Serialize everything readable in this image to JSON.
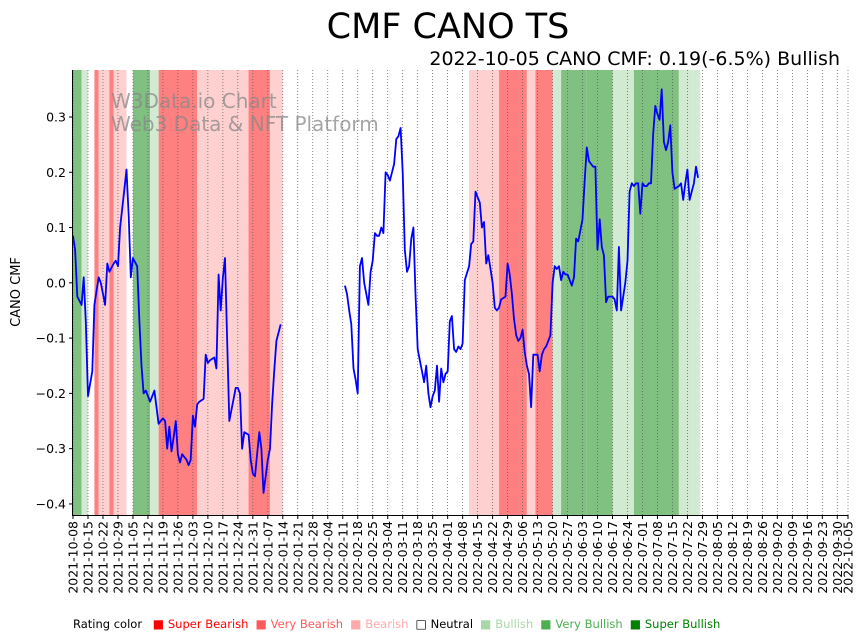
{
  "chart_data": {
    "type": "line",
    "title": "CMF CANO TS",
    "subtitle": "2022-10-05 CANO CMF: 0.19(-6.5%) Bullish",
    "xlabel": "",
    "ylabel": "CANO CMF",
    "ylim": [
      -0.42,
      0.385
    ],
    "xlim": [
      "2021-10-08",
      "2022-10-05"
    ],
    "y_ticks": [
      -0.4,
      -0.3,
      -0.2,
      -0.1,
      0.0,
      0.1,
      0.2,
      0.3
    ],
    "y_tick_labels": [
      "−0.4",
      "−0.3",
      "−0.2",
      "−0.1",
      "0.0",
      "0.1",
      "0.2",
      "0.3"
    ],
    "x_tick_labels": [
      "2021-10-08",
      "2021-10-15",
      "2021-10-22",
      "2021-10-29",
      "2021-11-05",
      "2021-11-12",
      "2021-11-19",
      "2021-11-26",
      "2021-12-03",
      "2021-12-10",
      "2021-12-17",
      "2021-12-24",
      "2021-12-31",
      "2022-01-07",
      "2022-01-14",
      "2022-01-21",
      "2022-01-28",
      "2022-02-04",
      "2022-02-11",
      "2022-02-18",
      "2022-02-25",
      "2022-03-04",
      "2022-03-11",
      "2022-03-18",
      "2022-03-25",
      "2022-04-01",
      "2022-04-08",
      "2022-04-15",
      "2022-04-22",
      "2022-04-29",
      "2022-05-06",
      "2022-05-13",
      "2022-05-20",
      "2022-05-27",
      "2022-06-03",
      "2022-06-10",
      "2022-06-17",
      "2022-06-24",
      "2022-07-01",
      "2022-07-08",
      "2022-07-15",
      "2022-07-22",
      "2022-07-29",
      "2022-08-05",
      "2022-08-12",
      "2022-08-19",
      "2022-08-26",
      "2022-09-02",
      "2022-09-09",
      "2022-09-16",
      "2022-09-23",
      "2022-09-30",
      "2022-10-05"
    ],
    "watermark": [
      "W3Data.io Chart",
      "Web3 Data & NFT Platform"
    ],
    "grid": "vertical dotted",
    "series": [
      {
        "name": "CANO CMF",
        "color": "#0000ff",
        "points": [
          [
            0,
            0.085
          ],
          [
            1,
            0.06
          ],
          [
            2,
            -0.025
          ],
          [
            4,
            -0.04
          ],
          [
            5,
            0.01
          ],
          [
            6,
            -0.07
          ],
          [
            7,
            -0.205
          ],
          [
            9,
            -0.16
          ],
          [
            10,
            -0.04
          ],
          [
            11,
            -0.015
          ],
          [
            12,
            0.01
          ],
          [
            13,
            0.0
          ],
          [
            15,
            -0.04
          ],
          [
            16,
            0.035
          ],
          [
            17,
            0.02
          ],
          [
            19,
            0.035
          ],
          [
            20,
            0.04
          ],
          [
            21,
            0.03
          ],
          [
            22,
            0.1
          ],
          [
            24,
            0.17
          ],
          [
            25,
            0.205
          ],
          [
            26,
            0.12
          ],
          [
            27,
            0.01
          ],
          [
            28,
            0.045
          ],
          [
            30,
            0.03
          ],
          [
            31,
            -0.07
          ],
          [
            32,
            -0.15
          ],
          [
            33,
            -0.2
          ],
          [
            34,
            -0.195
          ],
          [
            36,
            -0.215
          ],
          [
            38,
            -0.195
          ],
          [
            40,
            -0.255
          ],
          [
            42,
            -0.245
          ],
          [
            43,
            -0.25
          ],
          [
            44,
            -0.3
          ],
          [
            45,
            -0.26
          ],
          [
            46,
            -0.305
          ],
          [
            47,
            -0.28
          ],
          [
            48,
            -0.25
          ],
          [
            49,
            -0.31
          ],
          [
            50,
            -0.325
          ],
          [
            51,
            -0.31
          ],
          [
            52,
            -0.315
          ],
          [
            53,
            -0.32
          ],
          [
            54,
            -0.33
          ],
          [
            55,
            -0.32
          ],
          [
            56,
            -0.24
          ],
          [
            57,
            -0.26
          ],
          [
            58,
            -0.22
          ],
          [
            59,
            -0.215
          ],
          [
            61,
            -0.21
          ],
          [
            62,
            -0.13
          ],
          [
            63,
            -0.145
          ],
          [
            64,
            -0.14
          ],
          [
            66,
            -0.135
          ],
          [
            67,
            -0.155
          ],
          [
            68,
            0.015
          ],
          [
            69,
            -0.05
          ],
          [
            70,
            0.01
          ],
          [
            71,
            0.045
          ],
          [
            72,
            -0.1
          ],
          [
            73,
            -0.25
          ],
          [
            75,
            -0.21
          ],
          [
            76,
            -0.19
          ],
          [
            77,
            -0.19
          ],
          [
            78,
            -0.2
          ],
          [
            79,
            -0.3
          ],
          [
            80,
            -0.27
          ],
          [
            82,
            -0.275
          ],
          [
            83,
            -0.32
          ],
          [
            84,
            -0.345
          ],
          [
            85,
            -0.35
          ],
          [
            86,
            -0.31
          ],
          [
            87,
            -0.27
          ],
          [
            88,
            -0.3
          ],
          [
            89,
            -0.38
          ],
          [
            90,
            -0.35
          ],
          [
            91,
            -0.32
          ],
          [
            92,
            -0.3
          ],
          [
            93,
            -0.22
          ],
          [
            94,
            -0.16
          ],
          [
            95,
            -0.105
          ],
          [
            97,
            -0.075
          ],
          null,
          [
            127,
            -0.005
          ],
          [
            128,
            -0.02
          ],
          [
            129,
            -0.05
          ],
          [
            130,
            -0.075
          ],
          [
            131,
            -0.155
          ],
          [
            132,
            -0.175
          ],
          [
            133,
            -0.2
          ],
          [
            134,
            0.03
          ],
          [
            135,
            0.045
          ],
          [
            136,
            0.0
          ],
          [
            138,
            -0.04
          ],
          [
            139,
            0.02
          ],
          [
            140,
            0.04
          ],
          [
            141,
            0.09
          ],
          [
            142,
            0.085
          ],
          [
            143,
            0.085
          ],
          [
            144,
            0.1
          ],
          [
            145,
            0.09
          ],
          [
            146,
            0.2
          ],
          [
            147,
            0.195
          ],
          [
            148,
            0.185
          ],
          [
            149,
            0.2
          ],
          [
            150,
            0.215
          ],
          [
            151,
            0.26
          ],
          [
            152,
            0.265
          ],
          [
            153,
            0.28
          ],
          [
            154,
            0.2
          ],
          [
            155,
            0.06
          ],
          [
            156,
            0.02
          ],
          [
            157,
            0.03
          ],
          [
            158,
            0.08
          ],
          [
            159,
            0.1
          ],
          [
            160,
            -0.02
          ],
          [
            161,
            -0.12
          ],
          [
            162,
            -0.14
          ],
          [
            163,
            -0.16
          ],
          [
            164,
            -0.18
          ],
          [
            165,
            -0.15
          ],
          [
            166,
            -0.2
          ],
          [
            167,
            -0.225
          ],
          [
            168,
            -0.205
          ],
          [
            169,
            -0.195
          ],
          [
            170,
            -0.15
          ],
          [
            171,
            -0.215
          ],
          [
            172,
            -0.155
          ],
          [
            173,
            -0.18
          ],
          [
            174,
            -0.165
          ],
          [
            175,
            -0.16
          ],
          [
            176,
            -0.07
          ],
          [
            177,
            -0.06
          ],
          [
            178,
            -0.12
          ],
          [
            179,
            -0.125
          ],
          [
            180,
            -0.115
          ],
          [
            181,
            -0.12
          ],
          [
            182,
            -0.11
          ],
          [
            183,
            0.005
          ],
          [
            185,
            0.03
          ],
          [
            186,
            0.07
          ],
          [
            187,
            0.075
          ],
          [
            188,
            0.165
          ],
          [
            189,
            0.155
          ],
          [
            190,
            0.145
          ],
          [
            191,
            0.1
          ],
          [
            192,
            0.11
          ],
          [
            193,
            0.035
          ],
          [
            194,
            0.05
          ],
          [
            195,
            0.025
          ],
          [
            196,
            0.0
          ],
          [
            197,
            -0.045
          ],
          [
            198,
            -0.05
          ],
          [
            199,
            -0.045
          ],
          [
            200,
            -0.03
          ],
          [
            202,
            -0.025
          ],
          [
            203,
            0.035
          ],
          [
            204,
            0.015
          ],
          [
            205,
            -0.02
          ],
          [
            206,
            -0.065
          ],
          [
            207,
            -0.095
          ],
          [
            208,
            -0.105
          ],
          [
            209,
            -0.1
          ],
          [
            210,
            -0.085
          ],
          [
            211,
            -0.125
          ],
          [
            212,
            -0.15
          ],
          [
            213,
            -0.165
          ],
          [
            214,
            -0.225
          ],
          [
            215,
            -0.13
          ],
          [
            217,
            -0.13
          ],
          [
            218,
            -0.16
          ],
          [
            219,
            -0.13
          ],
          [
            220,
            -0.12
          ],
          [
            221,
            -0.115
          ],
          [
            222,
            -0.105
          ],
          [
            223,
            -0.095
          ],
          [
            224,
            0.0
          ],
          [
            225,
            0.03
          ],
          [
            226,
            0.025
          ],
          [
            227,
            0.03
          ],
          [
            228,
            0.005
          ],
          [
            229,
            0.02
          ],
          [
            230,
            0.015
          ],
          [
            231,
            0.015
          ],
          [
            232,
            0.005
          ],
          [
            233,
            -0.005
          ],
          [
            234,
            0.01
          ],
          [
            235,
            0.08
          ],
          [
            236,
            0.075
          ],
          [
            237,
            0.095
          ],
          [
            238,
            0.115
          ],
          [
            239,
            0.185
          ],
          [
            240,
            0.245
          ],
          [
            241,
            0.22
          ],
          [
            242,
            0.215
          ],
          [
            243,
            0.21
          ],
          [
            244,
            0.21
          ],
          [
            245,
            0.06
          ],
          [
            246,
            0.115
          ],
          [
            247,
            0.065
          ],
          [
            248,
            0.05
          ],
          [
            249,
            -0.035
          ],
          [
            250,
            -0.025
          ],
          [
            251,
            -0.025
          ],
          [
            252,
            -0.025
          ],
          [
            253,
            -0.03
          ],
          [
            254,
            -0.05
          ],
          [
            255,
            0.065
          ],
          [
            256,
            -0.05
          ],
          [
            257,
            -0.025
          ],
          [
            258,
            0.0
          ],
          [
            259,
            0.04
          ],
          [
            260,
            0.165
          ],
          [
            261,
            0.18
          ],
          [
            262,
            0.175
          ],
          [
            263,
            0.18
          ],
          [
            264,
            0.18
          ],
          [
            265,
            0.125
          ],
          [
            266,
            0.18
          ],
          [
            267,
            0.175
          ],
          [
            268,
            0.175
          ],
          [
            269,
            0.18
          ],
          [
            270,
            0.18
          ],
          [
            271,
            0.27
          ],
          [
            272,
            0.32
          ],
          [
            273,
            0.305
          ],
          [
            274,
            0.295
          ],
          [
            275,
            0.35
          ],
          [
            276,
            0.255
          ],
          [
            277,
            0.24
          ],
          [
            278,
            0.255
          ],
          [
            279,
            0.285
          ],
          [
            280,
            0.2
          ],
          [
            281,
            0.17
          ],
          [
            283,
            0.175
          ],
          [
            284,
            0.18
          ],
          [
            285,
            0.15
          ],
          [
            286,
            0.18
          ],
          [
            287,
            0.205
          ],
          [
            288,
            0.15
          ],
          [
            289,
            0.165
          ],
          [
            290,
            0.18
          ],
          [
            291,
            0.21
          ],
          [
            292,
            0.19
          ]
        ]
      }
    ],
    "rating_bands_daydiff_from_start": [
      {
        "from": 0,
        "to": 4,
        "rating": "Very Bullish"
      },
      {
        "from": 4,
        "to": 7,
        "rating": "Bullish"
      },
      {
        "from": 7,
        "to": 10,
        "rating": "Neutral"
      },
      {
        "from": 10,
        "to": 12,
        "rating": "Very Bearish"
      },
      {
        "from": 12,
        "to": 17,
        "rating": "Bearish"
      },
      {
        "from": 17,
        "to": 19,
        "rating": "Very Bearish"
      },
      {
        "from": 19,
        "to": 25,
        "rating": "Bearish"
      },
      {
        "from": 25,
        "to": 28,
        "rating": "Neutral"
      },
      {
        "from": 28,
        "to": 36,
        "rating": "Very Bullish"
      },
      {
        "from": 36,
        "to": 40,
        "rating": "Bullish"
      },
      {
        "from": 40,
        "to": 58,
        "rating": "Very Bearish"
      },
      {
        "from": 58,
        "to": 82,
        "rating": "Bearish"
      },
      {
        "from": 82,
        "to": 92,
        "rating": "Very Bearish"
      },
      {
        "from": 92,
        "to": 98,
        "rating": "Bearish"
      },
      {
        "from": 98,
        "to": 100,
        "rating": "Neutral"
      },
      {
        "from": 185,
        "to": 199,
        "rating": "Bearish"
      },
      {
        "from": 199,
        "to": 212,
        "rating": "Very Bearish"
      },
      {
        "from": 212,
        "to": 216,
        "rating": "Bearish"
      },
      {
        "from": 216,
        "to": 224,
        "rating": "Very Bearish"
      },
      {
        "from": 224,
        "to": 228,
        "rating": "Bullish"
      },
      {
        "from": 228,
        "to": 240,
        "rating": "Very Bullish"
      },
      {
        "from": 240,
        "to": 252,
        "rating": "Very Bullish"
      },
      {
        "from": 252,
        "to": 262,
        "rating": "Bullish"
      },
      {
        "from": 262,
        "to": 270,
        "rating": "Very Bullish"
      },
      {
        "from": 270,
        "to": 283,
        "rating": "Very Bullish"
      },
      {
        "from": 283,
        "to": 290,
        "rating": "Bullish"
      },
      {
        "from": 290,
        "to": 293,
        "rating": "Bullish"
      }
    ],
    "legend": {
      "title": "Rating color",
      "items": [
        {
          "label": "Super Bearish",
          "color": "#ff0000"
        },
        {
          "label": "Very Bearish",
          "color": "#ff5a5a"
        },
        {
          "label": "Bearish",
          "color": "#ffaaaa"
        },
        {
          "label": "Neutral",
          "color": "#000000"
        },
        {
          "label": "Bullish",
          "color": "#a8d8a8"
        },
        {
          "label": "Very Bullish",
          "color": "#4caf50"
        },
        {
          "label": "Super Bullish",
          "color": "#008000"
        }
      ]
    }
  },
  "band_colors": {
    "Super Bearish": "#ff4040",
    "Very Bearish": "#ff8080",
    "Bearish": "#ffd0d0",
    "Neutral": "#ffffff",
    "Bullish": "#d2ead2",
    "Very Bullish": "#80c080",
    "Super Bullish": "#40a040"
  }
}
